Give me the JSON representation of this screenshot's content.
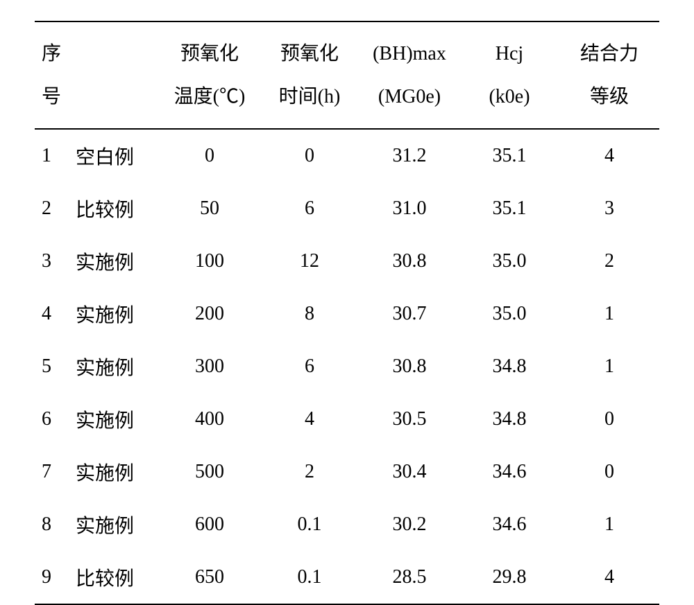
{
  "table": {
    "background_color": "#ffffff",
    "text_color": "#000000",
    "border_color": "#000000",
    "font_size": 28,
    "header_line_height": 2.2,
    "columns": [
      {
        "key": "seq",
        "line1": "序",
        "line2": "号",
        "align": "left",
        "width_pct": 6
      },
      {
        "key": "type",
        "line1": "",
        "line2": "",
        "align": "left",
        "width_pct": 14
      },
      {
        "key": "temp",
        "line1": "预氧化",
        "line2": "温度(℃)",
        "align": "center",
        "width_pct": 16
      },
      {
        "key": "time",
        "line1": "预氧化",
        "line2": "时间(h)",
        "align": "center",
        "width_pct": 16
      },
      {
        "key": "bhmax",
        "line1": "(BH)max",
        "line2": "(MG0e)",
        "align": "center",
        "width_pct": 16
      },
      {
        "key": "hcj",
        "line1": "Hcj",
        "line2": "(k0e)",
        "align": "center",
        "width_pct": 16
      },
      {
        "key": "bond",
        "line1": "结合力",
        "line2": "等级",
        "align": "center",
        "width_pct": 16
      }
    ],
    "rows": [
      {
        "seq": "1",
        "type": "空白例",
        "temp": "0",
        "time": "0",
        "bhmax": "31.2",
        "hcj": "35.1",
        "bond": "4"
      },
      {
        "seq": "2",
        "type": "比较例",
        "temp": "50",
        "time": "6",
        "bhmax": "31.0",
        "hcj": "35.1",
        "bond": "3"
      },
      {
        "seq": "3",
        "type": "实施例",
        "temp": "100",
        "time": "12",
        "bhmax": "30.8",
        "hcj": "35.0",
        "bond": "2"
      },
      {
        "seq": "4",
        "type": "实施例",
        "temp": "200",
        "time": "8",
        "bhmax": "30.7",
        "hcj": "35.0",
        "bond": "1"
      },
      {
        "seq": "5",
        "type": "实施例",
        "temp": "300",
        "time": "6",
        "bhmax": "30.8",
        "hcj": "34.8",
        "bond": "1"
      },
      {
        "seq": "6",
        "type": "实施例",
        "temp": "400",
        "time": "4",
        "bhmax": "30.5",
        "hcj": "34.8",
        "bond": "0"
      },
      {
        "seq": "7",
        "type": "实施例",
        "temp": "500",
        "time": "2",
        "bhmax": "30.4",
        "hcj": "34.6",
        "bond": "0"
      },
      {
        "seq": "8",
        "type": "实施例",
        "temp": "600",
        "time": "0.1",
        "bhmax": "30.2",
        "hcj": "34.6",
        "bond": "1"
      },
      {
        "seq": "9",
        "type": "比较例",
        "temp": "650",
        "time": "0.1",
        "bhmax": "28.5",
        "hcj": "29.8",
        "bond": "4"
      }
    ]
  }
}
